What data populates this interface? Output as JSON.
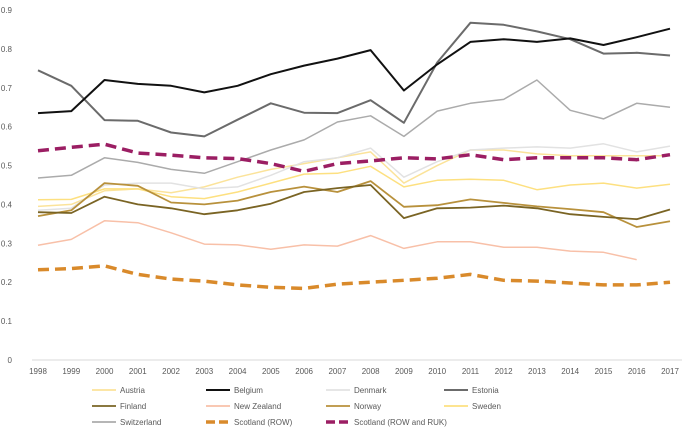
{
  "chart_data": {
    "type": "line",
    "title": "",
    "xlabel": "",
    "ylabel": "",
    "ylim": [
      0,
      0.9
    ],
    "yticks": [
      "0",
      "0.1",
      "0.2",
      "0.3",
      "0.4",
      "0.5",
      "0.6",
      "0.7",
      "0.8",
      "0.9"
    ],
    "x": [
      "1998",
      "1999",
      "2000",
      "2001",
      "2002",
      "2003",
      "2004",
      "2005",
      "2006",
      "2007",
      "2008",
      "2009",
      "2010",
      "2011",
      "2012",
      "2013",
      "2014",
      "2015",
      "2016",
      "2017"
    ],
    "grid": false,
    "legend_position": "bottom",
    "series": [
      {
        "name": "Austria",
        "color": "#fbe39a",
        "dash": false,
        "width": 1.5,
        "values": [
          0.395,
          0.4,
          0.435,
          0.44,
          0.43,
          0.445,
          0.47,
          0.49,
          0.505,
          0.52,
          0.535,
          0.455,
          0.5,
          0.54,
          0.54,
          0.53,
          0.525,
          0.525,
          0.525,
          0.525
        ]
      },
      {
        "name": "Belgium",
        "color": "#111111",
        "dash": false,
        "width": 2,
        "values": [
          0.635,
          0.64,
          0.72,
          0.71,
          0.705,
          0.688,
          0.705,
          0.735,
          0.757,
          0.775,
          0.797,
          0.693,
          0.76,
          0.818,
          0.825,
          0.818,
          0.827,
          0.81,
          0.83,
          0.852
        ]
      },
      {
        "name": "Denmark",
        "color": "#e2e2e2",
        "dash": false,
        "width": 1.5,
        "values": [
          0.385,
          0.39,
          0.45,
          0.455,
          0.455,
          0.44,
          0.445,
          0.475,
          0.51,
          0.52,
          0.545,
          0.47,
          0.51,
          0.54,
          0.545,
          0.548,
          0.545,
          0.556,
          0.535,
          0.55
        ]
      },
      {
        "name": "Estonia",
        "color": "#6b6b6b",
        "dash": false,
        "width": 2,
        "values": [
          0.745,
          0.705,
          0.617,
          0.615,
          0.585,
          0.575,
          0.618,
          0.66,
          0.636,
          0.635,
          0.668,
          0.61,
          0.765,
          0.867,
          0.862,
          0.845,
          0.825,
          0.788,
          0.79,
          0.783
        ]
      },
      {
        "name": "Finland",
        "color": "#7a6424",
        "dash": false,
        "width": 1.8,
        "values": [
          0.38,
          0.378,
          0.42,
          0.4,
          0.39,
          0.375,
          0.385,
          0.402,
          0.432,
          0.442,
          0.45,
          0.365,
          0.39,
          0.392,
          0.397,
          0.39,
          0.375,
          0.368,
          0.362,
          0.387
        ]
      },
      {
        "name": "New Zealand",
        "color": "#f8c0a8",
        "dash": false,
        "width": 1.5,
        "values": [
          0.295,
          0.31,
          0.358,
          0.353,
          0.327,
          0.298,
          0.296,
          0.285,
          0.296,
          0.293,
          0.32,
          0.287,
          0.304,
          0.304,
          0.29,
          0.29,
          0.28,
          0.277,
          0.258,
          null
        ]
      },
      {
        "name": "Norway",
        "color": "#b8913c",
        "dash": false,
        "width": 1.8,
        "values": [
          0.37,
          0.385,
          0.455,
          0.448,
          0.405,
          0.4,
          0.41,
          0.432,
          0.446,
          0.432,
          0.46,
          0.394,
          0.398,
          0.413,
          0.404,
          0.395,
          0.388,
          0.38,
          0.342,
          0.357
        ]
      },
      {
        "name": "Sweden",
        "color": "#fde080",
        "dash": false,
        "width": 1.5,
        "values": [
          0.412,
          0.413,
          0.44,
          0.44,
          0.42,
          0.415,
          0.432,
          0.455,
          0.478,
          0.48,
          0.498,
          0.445,
          0.462,
          0.465,
          0.462,
          0.438,
          0.45,
          0.455,
          0.442,
          0.452
        ]
      },
      {
        "name": "Switzerland",
        "color": "#ababab",
        "dash": false,
        "width": 1.5,
        "values": [
          0.468,
          0.475,
          0.52,
          0.508,
          0.49,
          0.48,
          0.51,
          0.54,
          0.566,
          0.612,
          0.628,
          0.575,
          0.64,
          0.66,
          0.67,
          0.72,
          0.642,
          0.62,
          0.66,
          0.65
        ]
      },
      {
        "name": "Scotland (ROW)",
        "color": "#d98a2b",
        "dash": true,
        "width": 3.5,
        "values": [
          0.232,
          0.235,
          0.242,
          0.22,
          0.208,
          0.203,
          0.193,
          0.187,
          0.184,
          0.195,
          0.2,
          0.205,
          0.21,
          0.22,
          0.205,
          0.203,
          0.198,
          0.193,
          0.193,
          0.2
        ]
      },
      {
        "name": "Scotland (ROW and RUK)",
        "color": "#9b1e63",
        "dash": true,
        "width": 3.5,
        "values": [
          0.538,
          0.547,
          0.555,
          0.532,
          0.527,
          0.52,
          0.518,
          0.505,
          0.485,
          0.505,
          0.512,
          0.52,
          0.517,
          0.528,
          0.515,
          0.52,
          0.52,
          0.52,
          0.515,
          0.528
        ]
      }
    ]
  }
}
